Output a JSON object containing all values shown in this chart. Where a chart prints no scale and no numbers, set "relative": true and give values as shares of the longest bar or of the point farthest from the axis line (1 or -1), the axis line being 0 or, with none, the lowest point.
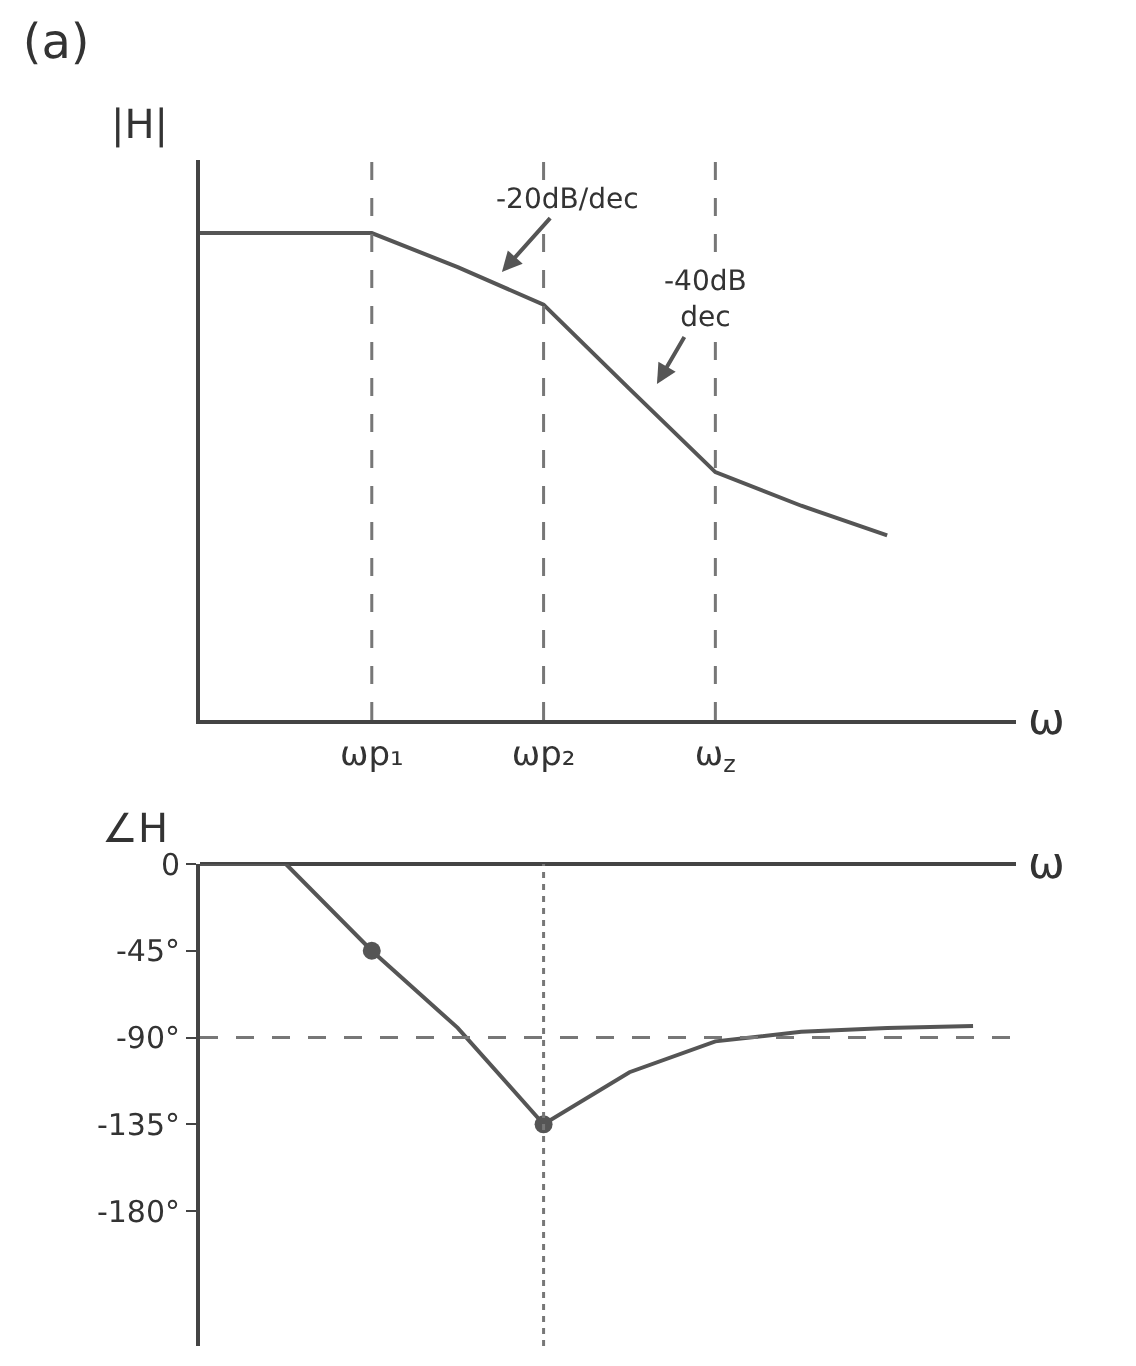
{
  "chart_data": [
    {
      "type": "line",
      "title": "(a)",
      "ylabel": "|H|",
      "xlabel": "ω",
      "relative": true,
      "tick_labels": "x",
      "grid": false,
      "marker": "none",
      "categories": [
        null,
        null,
        "ωp₁",
        null,
        "ωp₂",
        null,
        "ω$_{z}$",
        null,
        null,
        null
      ],
      "series": [
        {
          "color": "#555555",
          "values": [
            1,
            1,
            1,
            0.93,
            0.853,
            0.68,
            0.509,
            0.44,
            0.379,
            null
          ]
        }
      ],
      "ref_lines": [
        {
          "axis": "x",
          "value": "ωp₁",
          "line_style": "dashed",
          "color": "#777777"
        },
        {
          "axis": "x",
          "value": "ωp₂",
          "line_style": "dashed",
          "color": "#777777"
        },
        {
          "axis": "x",
          "value": "ω$_{z}$",
          "line_style": "dashed",
          "color": "#777777"
        }
      ],
      "annotations": [
        "-20dB/dec",
        "-40dB\ndec"
      ]
    },
    {
      "type": "line",
      "ylabel": "∠H",
      "xlabel": "ω",
      "tick_labels": "y",
      "grid": false,
      "marker": "none",
      "categories": [
        null,
        null,
        "ωp₁",
        null,
        "ωp₂",
        null,
        "ω$_{z}$",
        null,
        null,
        null
      ],
      "ylim": [
        -250,
        0
      ],
      "yticks": [
        0,
        {
          "value": -45,
          "label": "-45°"
        },
        {
          "value": -90,
          "label": "-90°"
        },
        {
          "value": -135,
          "label": "-135°"
        },
        {
          "value": -180,
          "label": "-180°"
        }
      ],
      "series": [
        {
          "color": "#555555",
          "values": [
            0,
            0,
            -45,
            -85,
            -135,
            -108,
            -92,
            -87,
            -85,
            -84
          ]
        },
        {
          "type": "scatter",
          "marker": "circle",
          "color": "#555555",
          "values": [
            null,
            null,
            -45,
            null,
            -135,
            null,
            null,
            null,
            null,
            null
          ]
        }
      ],
      "ref_lines": [
        {
          "axis": "y",
          "value": -90,
          "line_style": "dashed",
          "color": "#777777"
        },
        {
          "axis": "x",
          "value": "ωp₂",
          "line_style": "dotted",
          "color": "#777777"
        }
      ]
    }
  ]
}
